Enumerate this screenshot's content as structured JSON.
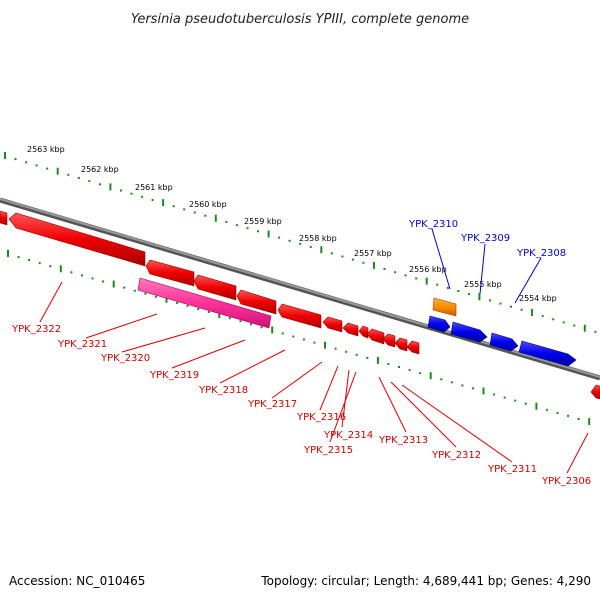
{
  "title": "Yersinia pseudotuberculosis YPIII, complete genome",
  "footer": {
    "accession": "Accession: NC_010465",
    "summary": "Topology: circular; Length: 4,689,441 bp; Genes: 4,290"
  },
  "scale_ticks": [
    "2563 kbp",
    "2562 kbp",
    "2561 kbp",
    "2560 kbp",
    "2559 kbp",
    "2558 kbp",
    "2557 kbp",
    "2556 kbp",
    "2555 kbp",
    "2554 kbp"
  ],
  "forward_genes": [
    {
      "name": "YPK_2310",
      "color": "#ff8c00"
    },
    {
      "name": "YPK_2309",
      "color": "#0000ee"
    },
    {
      "name": "YPK_2308",
      "color": "#0000ee"
    }
  ],
  "reverse_genes": [
    {
      "name": "YPK_2322",
      "color": "#ee0000"
    },
    {
      "name": "YPK_2321",
      "color": "#ee0000"
    },
    {
      "name": "YPK_2320",
      "color": "#ee0000"
    },
    {
      "name": "YPK_2319",
      "color": "#ee0000"
    },
    {
      "name": "YPK_2318",
      "color": "#ee0000"
    },
    {
      "name": "YPK_2317",
      "color": "#ee0000"
    },
    {
      "name": "YPK_2316",
      "color": "#ee0000"
    },
    {
      "name": "YPK_2314",
      "color": "#ee0000"
    },
    {
      "name": "YPK_2315",
      "color": "#ee0000"
    },
    {
      "name": "YPK_2313",
      "color": "#ee0000"
    },
    {
      "name": "YPK_2312",
      "color": "#ee0000"
    },
    {
      "name": "YPK_2311",
      "color": "#ee0000"
    },
    {
      "name": "YPK_2306",
      "color": "#ee0000"
    }
  ],
  "colors": {
    "backbone": "#7a7a7a",
    "scale_dots": "#1a8a1a",
    "forward_label": "#0000cc",
    "reverse_label": "#cc0000",
    "pseudo_pink": "#ff3399"
  }
}
